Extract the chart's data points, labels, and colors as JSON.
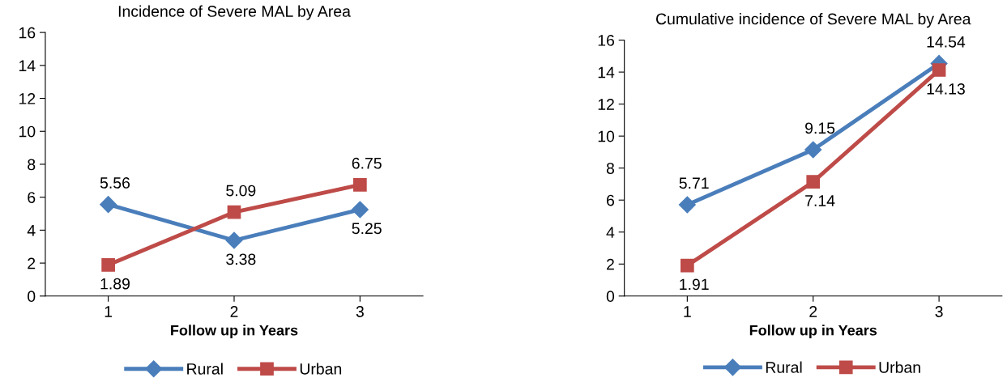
{
  "chart_data": [
    {
      "type": "line",
      "title": "Incidence of Severe MAL by Area",
      "xlabel": "Follow up in Years",
      "categories": [
        "1",
        "2",
        "3"
      ],
      "ylim": [
        0,
        16
      ],
      "yticks": [
        0,
        2,
        4,
        6,
        8,
        10,
        12,
        14,
        16
      ],
      "grid": false,
      "legend": "bottom",
      "data_labels": true,
      "series": [
        {
          "name": "Rural",
          "color": "#4a7ebb",
          "marker": "diamond",
          "values": [
            5.56,
            3.38,
            5.25
          ]
        },
        {
          "name": "Urban",
          "color": "#be4b48",
          "marker": "square",
          "values": [
            1.89,
            5.09,
            6.75
          ]
        }
      ]
    },
    {
      "type": "line",
      "title": "Cumulative incidence of Severe MAL by Area",
      "xlabel": "Follow up in Years",
      "categories": [
        "1",
        "2",
        "3"
      ],
      "ylim": [
        0,
        16
      ],
      "yticks": [
        0,
        2,
        4,
        6,
        8,
        10,
        12,
        14,
        16
      ],
      "grid": false,
      "legend": "bottom",
      "data_labels": true,
      "series": [
        {
          "name": "Rural",
          "color": "#4a7ebb",
          "marker": "diamond",
          "values": [
            5.71,
            9.15,
            14.54
          ]
        },
        {
          "name": "Urban",
          "color": "#be4b48",
          "marker": "square",
          "values": [
            1.91,
            7.14,
            14.13
          ]
        }
      ]
    }
  ]
}
